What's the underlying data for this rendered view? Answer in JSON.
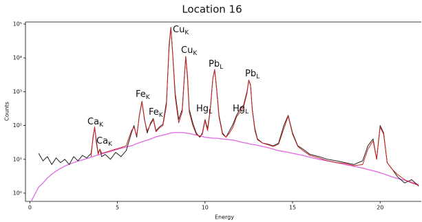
{
  "chart_data": {
    "type": "line",
    "title": "Location 16",
    "x_label": "Energy",
    "y_label": "Counts",
    "log_y": true,
    "xlim": [
      -0.25,
      22.35
    ],
    "ylim": [
      0.57,
      115000
    ],
    "xticks": [
      0,
      5,
      10,
      15,
      20
    ],
    "yticks": [
      {
        "value": 1,
        "label": "10⁰"
      },
      {
        "value": 10,
        "label": "10¹"
      },
      {
        "value": 100,
        "label": "10²"
      },
      {
        "value": 1000,
        "label": "10³"
      },
      {
        "value": 10000,
        "label": "10⁴"
      },
      {
        "value": 100000,
        "label": "10⁵"
      }
    ],
    "x": [
      0.1,
      0.5,
      0.75,
      1,
      1.25,
      1.5,
      1.75,
      2,
      2.25,
      2.5,
      2.75,
      3,
      3.25,
      3.5,
      3.6,
      3.7,
      3.8,
      3.9,
      4.0,
      4.1,
      4.3,
      4.6,
      4.9,
      5.2,
      5.5,
      5.8,
      5.95,
      6.1,
      6.25,
      6.4,
      6.55,
      6.7,
      6.9,
      7.05,
      7.2,
      7.4,
      7.6,
      7.8,
      7.95,
      8.05,
      8.15,
      8.3,
      8.5,
      8.7,
      8.8,
      8.9,
      9.0,
      9.1,
      9.3,
      9.5,
      9.7,
      9.85,
      10.0,
      10.15,
      10.3,
      10.45,
      10.55,
      10.65,
      10.8,
      11.0,
      11.2,
      11.4,
      11.6,
      11.8,
      12.0,
      12.2,
      12.4,
      12.5,
      12.6,
      12.7,
      12.85,
      13.0,
      13.3,
      13.6,
      13.9,
      14.2,
      14.5,
      14.75,
      15.0,
      15.3,
      15.6,
      16.0,
      16.5,
      17.0,
      17.5,
      18.0,
      18.5,
      19.0,
      19.3,
      19.6,
      19.8,
      20.0,
      20.2,
      20.4,
      20.7,
      21.0,
      21.4,
      21.8,
      22.2
    ],
    "series": [
      {
        "color": "#e070e0",
        "values": [
          0.6,
          1.5,
          2,
          2.8,
          3.6,
          4.5,
          5.4,
          6.3,
          7.2,
          8,
          8.8,
          9.6,
          10.5,
          11.5,
          12,
          12.5,
          13,
          13.5,
          14,
          14.5,
          15.5,
          17,
          19,
          21,
          23,
          25,
          27,
          29,
          31,
          33,
          35,
          37,
          40,
          43,
          46,
          49,
          52,
          55,
          58,
          60,
          61,
          62,
          62,
          62,
          61,
          60,
          59,
          58,
          55,
          52,
          49,
          47,
          45,
          44,
          43,
          42,
          42,
          42,
          41,
          40,
          39,
          38,
          37,
          35,
          33,
          31,
          30,
          29,
          28,
          27.5,
          27,
          26,
          24,
          22,
          20,
          18,
          17,
          16,
          15,
          14,
          13,
          11.5,
          10,
          9,
          8,
          7,
          6.2,
          5.5,
          5,
          4.6,
          4.3,
          4,
          3.7,
          3.4,
          3,
          2.7,
          2.4,
          2.1,
          1.8
        ]
      },
      {
        "color": "#222222",
        "values": [
          null,
          15,
          9,
          12,
          7,
          11,
          8,
          10,
          7,
          12,
          9,
          13,
          11,
          15,
          40,
          90,
          35,
          15,
          20,
          12,
          14,
          10,
          16,
          12,
          18,
          60,
          100,
          45,
          200,
          520,
          150,
          60,
          120,
          160,
          70,
          90,
          110,
          500,
          20000,
          80000,
          15000,
          900,
          150,
          300,
          2000,
          11000,
          3000,
          300,
          120,
          60,
          45,
          60,
          150,
          80,
          300,
          2500,
          4500,
          1500,
          200,
          60,
          45,
          70,
          110,
          200,
          300,
          400,
          1000,
          2200,
          1600,
          300,
          80,
          40,
          30,
          28,
          25,
          30,
          100,
          200,
          60,
          25,
          20,
          14,
          12,
          10,
          9,
          8,
          7,
          9,
          25,
          40,
          10,
          100,
          60,
          8,
          5,
          3,
          2,
          2.5,
          1.6
        ]
      },
      {
        "color": "#cc2222",
        "values": [
          null,
          null,
          null,
          null,
          null,
          null,
          null,
          null,
          null,
          null,
          null,
          null,
          null,
          12,
          45,
          90,
          30,
          14,
          20,
          15,
          16,
          18,
          20,
          22,
          25,
          70,
          90,
          50,
          190,
          500,
          140,
          70,
          110,
          150,
          65,
          85,
          100,
          400,
          25000,
          80000,
          14000,
          700,
          120,
          250,
          1800,
          11000,
          2500,
          250,
          100,
          55,
          48,
          55,
          140,
          70,
          280,
          2400,
          4500,
          1400,
          180,
          55,
          45,
          60,
          90,
          180,
          250,
          350,
          900,
          2200,
          1500,
          280,
          70,
          38,
          30,
          27,
          24,
          28,
          80,
          190,
          55,
          24,
          18,
          13,
          11,
          9,
          8,
          7.5,
          6.5,
          7,
          20,
          35,
          10,
          90,
          55,
          8,
          5,
          3.5,
          2.5,
          2,
          1.7
        ]
      }
    ],
    "annotations": [
      {
        "text": "Ca",
        "sub": "K"
      },
      {
        "text": "Ca",
        "sub": "K"
      },
      {
        "text": "Fe",
        "sub": "K"
      },
      {
        "text": "Fe",
        "sub": "K"
      },
      {
        "text": "Cu",
        "sub": "K"
      },
      {
        "text": "Cu",
        "sub": "K"
      },
      {
        "text": "Hg",
        "sub": "L"
      },
      {
        "text": "Pb",
        "sub": "L"
      },
      {
        "text": "Hg",
        "sub": "L"
      },
      {
        "text": "Pb",
        "sub": "L"
      }
    ]
  }
}
